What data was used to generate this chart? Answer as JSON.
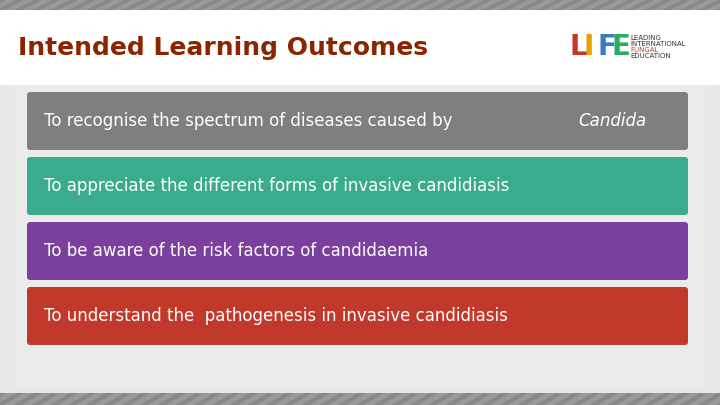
{
  "title": "Intended Learning Outcomes",
  "title_color": "#8B2500",
  "bg_color": "#e8e8e8",
  "header_bg": "#ffffff",
  "card_bg": "#ebebeb",
  "top_stripe_color": "#888888",
  "boxes": [
    {
      "text_normal": "To recognise the spectrum of diseases caused by ",
      "text_italic": "Candida",
      "color": "#7f7f7f",
      "text_color": "#ffffff"
    },
    {
      "text_normal": "To appreciate the different forms of invasive candidiasis",
      "text_italic": "",
      "color": "#3aab8c",
      "text_color": "#ffffff"
    },
    {
      "text_normal": "To be aware of the risk factors of candidaemia",
      "text_italic": "",
      "color": "#7b3f9e",
      "text_color": "#ffffff"
    },
    {
      "text_normal": "To understand the  pathogenesis in invasive candidiasis",
      "text_italic": "",
      "color": "#c0392b",
      "text_color": "#ffffff"
    }
  ],
  "font_size_title": 18,
  "font_size_box": 12,
  "life_letters": [
    "L",
    "I",
    "F",
    "E"
  ],
  "life_colors": [
    "#c0392b",
    "#e8a000",
    "#3a7abf",
    "#27ae60"
  ],
  "life_subtext_color": "#333333",
  "life_fungal_color": "#c0392b"
}
